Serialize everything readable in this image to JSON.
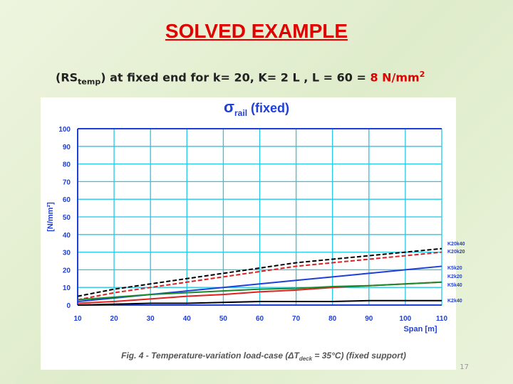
{
  "slide": {
    "title": "SOLVED EXAMPLE",
    "subtitle": [
      "(RS",
      "temp",
      ") at fixed end for k= 20, K= 2 L , L = 60 = ",
      "8 N/mm",
      "2"
    ],
    "page_number": "17"
  },
  "chart_data": {
    "type": "line",
    "title": [
      "σ",
      "rail",
      " (fixed)"
    ],
    "y_label": "[N/mm²]",
    "x_label": "Span [m]",
    "caption": [
      "Fig. 4 - Temperature-variation load-case (",
      "ΔT",
      "deck",
      " = 35°C) (fixed support)"
    ],
    "x": [
      10,
      20,
      30,
      40,
      50,
      60,
      70,
      80,
      90,
      100,
      110
    ],
    "xlim": [
      10,
      110
    ],
    "xticks": [
      10,
      20,
      30,
      40,
      50,
      60,
      70,
      80,
      90,
      100,
      110
    ],
    "ylim": [
      0,
      100
    ],
    "yticks": [
      0,
      10,
      20,
      30,
      40,
      50,
      60,
      70,
      80,
      90,
      100
    ],
    "grid": true,
    "series": [
      {
        "name": "K20k40",
        "color": "#000000",
        "linestyle": "dashed",
        "values": [
          5,
          9,
          12,
          15,
          18,
          21,
          24,
          26,
          28,
          30,
          32
        ]
      },
      {
        "name": "K20k20",
        "color": "#e02020",
        "linestyle": "dashed",
        "values": [
          3,
          7,
          10,
          13,
          16,
          19,
          22,
          24,
          26,
          28,
          30
        ]
      },
      {
        "name": "K5k20",
        "color": "#1f3fd8",
        "linestyle": "solid",
        "values": [
          2,
          4,
          6,
          8,
          10,
          12,
          14,
          16,
          18,
          20,
          22
        ]
      },
      {
        "name": "K2k20",
        "color": "#e02020",
        "linestyle": "solid",
        "values": [
          1,
          2,
          3.5,
          5,
          6,
          7.5,
          8.5,
          10,
          11,
          12,
          13
        ]
      },
      {
        "name": "K5k40",
        "color": "#1a8a2a",
        "linestyle": "solid",
        "values": [
          3,
          4.5,
          6,
          7,
          8,
          9,
          9.5,
          10.5,
          11,
          12,
          13
        ]
      },
      {
        "name": "K2k40",
        "color": "#000000",
        "linestyle": "solid",
        "values": [
          0,
          0.5,
          1,
          1,
          1.5,
          2,
          2,
          2,
          2.5,
          2.5,
          2.5
        ]
      }
    ]
  }
}
